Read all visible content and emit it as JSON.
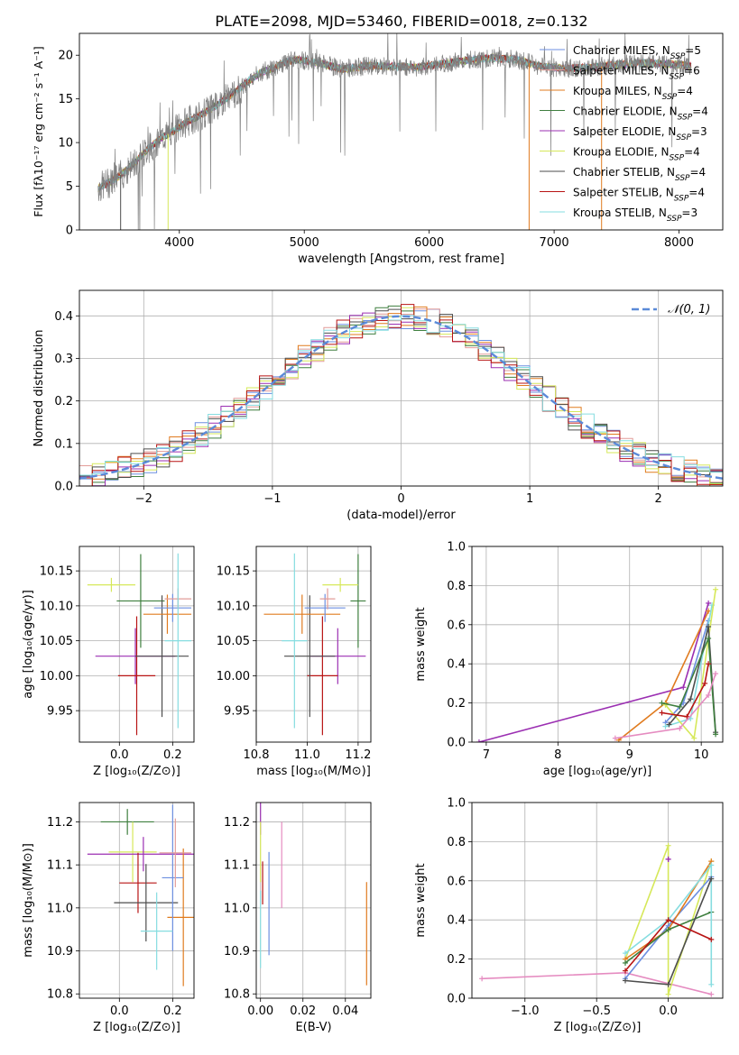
{
  "title": "PLATE=2098, MJD=53460, FIBERID=0018, z=0.132",
  "colors": {
    "chabrier_miles": "#6d8fe0",
    "salpeter_miles": "#e29c98",
    "kroupa_miles": "#e07b1f",
    "chabrier_elodie": "#3f7f3f",
    "salpeter_elodie": "#9b2fb2",
    "kroupa_elodie": "#d6e85a",
    "chabrier_stelib": "#4d4d4d",
    "salpeter_stelib": "#b81414",
    "kroupa_stelib": "#86dde0",
    "data": "#7f7f7f",
    "gauss": "#5b8ad8",
    "pink": "#e58bc0",
    "grid": "#b0b0b0"
  },
  "chart_data": [
    {
      "id": "spectrum",
      "type": "line",
      "xlabel": "wavelength [Angstrom, rest frame]",
      "ylabel": "Flux [fλ10⁻¹⁷ erg cm⁻² s⁻¹ A⁻¹]",
      "xlim": [
        3200,
        8350
      ],
      "ylim": [
        0,
        22.5
      ],
      "xticks": [
        "4000",
        "5000",
        "6000",
        "7000",
        "8000"
      ],
      "yticks": [
        "0",
        "5",
        "10",
        "15",
        "20"
      ],
      "grid": false,
      "legend_position": "right",
      "legend": [
        {
          "key": "chabrier_miles",
          "label": "Chabrier MILES, N",
          "sub": "SSP",
          "suffix": "=5"
        },
        {
          "key": "salpeter_miles",
          "label": "Salpeter MILES, N",
          "sub": "SSP",
          "suffix": "=6"
        },
        {
          "key": "kroupa_miles",
          "label": "Kroupa MILES, N",
          "sub": "SSP",
          "suffix": "=4"
        },
        {
          "key": "chabrier_elodie",
          "label": "Chabrier ELODIE, N",
          "sub": "SSP",
          "suffix": "=4"
        },
        {
          "key": "salpeter_elodie",
          "label": "Salpeter ELODIE, N",
          "sub": "SSP",
          "suffix": "=3"
        },
        {
          "key": "kroupa_elodie",
          "label": "Kroupa ELODIE, N",
          "sub": "SSP",
          "suffix": "=4"
        },
        {
          "key": "chabrier_stelib",
          "label": "Chabrier STELIB, N",
          "sub": "SSP",
          "suffix": "=4"
        },
        {
          "key": "salpeter_stelib",
          "label": "Salpeter STELIB, N",
          "sub": "SSP",
          "suffix": "=4"
        },
        {
          "key": "kroupa_stelib",
          "label": "Kroupa STELIB, N",
          "sub": "SSP",
          "suffix": "=3"
        }
      ],
      "continuum": [
        [
          3350,
          4.8
        ],
        [
          3450,
          5.5
        ],
        [
          3550,
          6.5
        ],
        [
          3650,
          7.8
        ],
        [
          3750,
          9.3
        ],
        [
          3850,
          10.5
        ],
        [
          3950,
          11.3
        ],
        [
          4050,
          12.3
        ],
        [
          4150,
          13.0
        ],
        [
          4250,
          13.8
        ],
        [
          4350,
          14.8
        ],
        [
          4450,
          15.8
        ],
        [
          4550,
          17.0
        ],
        [
          4650,
          18.0
        ],
        [
          4750,
          18.5
        ],
        [
          4850,
          19.2
        ],
        [
          4950,
          19.5
        ],
        [
          5050,
          19.3
        ],
        [
          5150,
          19.0
        ],
        [
          5300,
          18.4
        ],
        [
          5500,
          18.8
        ],
        [
          5700,
          18.7
        ],
        [
          5900,
          18.6
        ],
        [
          6100,
          19.0
        ],
        [
          6300,
          19.4
        ],
        [
          6500,
          19.7
        ],
        [
          6700,
          19.5
        ],
        [
          6900,
          18.7
        ],
        [
          7100,
          18.5
        ],
        [
          7300,
          18.6
        ],
        [
          7500,
          18.9
        ],
        [
          7700,
          19.1
        ],
        [
          7900,
          19.0
        ],
        [
          8100,
          18.8
        ]
      ]
    },
    {
      "id": "residuals",
      "type": "line",
      "xlabel": "(data-model)/error",
      "ylabel": "Normed distribution",
      "xlim": [
        -2.5,
        2.5
      ],
      "ylim": [
        0,
        0.46
      ],
      "xticks": [
        "−2",
        "−1",
        "0",
        "1",
        "2"
      ],
      "yticks": [
        "0.0",
        "0.1",
        "0.2",
        "0.3",
        "0.4"
      ],
      "grid": true,
      "legend_position": "top-right",
      "gauss_label": "𝒩(0, 1)"
    },
    {
      "id": "age_vs_Z",
      "type": "scatter",
      "xlabel": "Z [log₁₀(Z/Z⊙)]",
      "ylabel": "age  [log₁₀(age/yr)]",
      "xlim": [
        -0.15,
        0.28
      ],
      "ylim": [
        9.905,
        10.185
      ],
      "xticks": [
        "0.0",
        "0.2"
      ],
      "yticks": [
        "9.95",
        "10.00",
        "10.05",
        "10.10",
        "10.15"
      ],
      "grid": true,
      "points": [
        {
          "key": "chabrier_elodie",
          "x": 0.08,
          "y": 10.107,
          "xerr": 0.09,
          "yerr": 0.067
        },
        {
          "key": "kroupa_elodie",
          "x": -0.03,
          "y": 10.13,
          "xerr": 0.09,
          "yerr": 0.01
        },
        {
          "key": "salpeter_elodie",
          "x": 0.06,
          "y": 10.028,
          "xerr": 0.15,
          "yerr": 0.04
        },
        {
          "key": "salpeter_stelib",
          "x": 0.065,
          "y": 10.0,
          "xerr": 0.07,
          "yerr": 0.085
        },
        {
          "key": "chabrier_stelib",
          "x": 0.16,
          "y": 10.028,
          "xerr": 0.1,
          "yerr": 0.087
        },
        {
          "key": "kroupa_miles",
          "x": 0.18,
          "y": 10.088,
          "xerr": 0.09,
          "yerr": 0.028
        },
        {
          "key": "chabrier_miles",
          "x": 0.2,
          "y": 10.097,
          "xerr": 0.07,
          "yerr": 0.02
        },
        {
          "key": "salpeter_miles",
          "x": 0.22,
          "y": 10.11,
          "xerr": 0.05,
          "yerr": 0.015
        },
        {
          "key": "kroupa_stelib",
          "x": 0.22,
          "y": 10.05,
          "xerr": 0.05,
          "yerr": 0.125
        }
      ]
    },
    {
      "id": "age_vs_mass",
      "type": "scatter",
      "xlabel": "mass [log₁₀(M/M⊙)]",
      "ylabel": "",
      "xlim": [
        10.8,
        11.25
      ],
      "ylim": [
        9.905,
        10.185
      ],
      "xticks": [
        "10.8",
        "11.0",
        "11.2"
      ],
      "yticks": [
        "9.95",
        "10.00",
        "10.05",
        "10.10",
        "10.15"
      ],
      "grid": true,
      "points": [
        {
          "key": "chabrier_elodie",
          "x": 11.2,
          "y": 10.107,
          "xerr": 0.03,
          "yerr": 0.067
        },
        {
          "key": "kroupa_elodie",
          "x": 11.13,
          "y": 10.13,
          "xerr": 0.07,
          "yerr": 0.01
        },
        {
          "key": "salpeter_elodie",
          "x": 11.12,
          "y": 10.028,
          "xerr": 0.11,
          "yerr": 0.04
        },
        {
          "key": "salpeter_stelib",
          "x": 11.06,
          "y": 10.0,
          "xerr": 0.06,
          "yerr": 0.085
        },
        {
          "key": "chabrier_stelib",
          "x": 11.01,
          "y": 10.028,
          "xerr": 0.1,
          "yerr": 0.087
        },
        {
          "key": "kroupa_miles",
          "x": 10.98,
          "y": 10.088,
          "xerr": 0.15,
          "yerr": 0.028
        },
        {
          "key": "chabrier_miles",
          "x": 11.07,
          "y": 10.097,
          "xerr": 0.08,
          "yerr": 0.02
        },
        {
          "key": "salpeter_miles",
          "x": 11.08,
          "y": 10.11,
          "xerr": 0.03,
          "yerr": 0.015
        },
        {
          "key": "kroupa_stelib",
          "x": 10.95,
          "y": 10.05,
          "xerr": 0.05,
          "yerr": 0.125
        }
      ]
    },
    {
      "id": "weight_vs_age",
      "type": "line",
      "xlabel": "age  [log₁₀(age/yr)]",
      "ylabel": "mass weight",
      "xlim": [
        6.8,
        10.3
      ],
      "ylim": [
        0,
        1.0
      ],
      "xticks": [
        "7",
        "8",
        "9",
        "10"
      ],
      "yticks": [
        "0.0",
        "0.2",
        "0.4",
        "0.6",
        "0.8",
        "1.0"
      ],
      "grid": true,
      "series": [
        {
          "key": "salpeter_elodie",
          "x": [
            6.9,
            9.75,
            10.1
          ],
          "y": [
            0.0,
            0.28,
            0.71
          ]
        },
        {
          "key": "kroupa_miles",
          "x": [
            8.85,
            9.5,
            10.1
          ],
          "y": [
            0.01,
            0.2,
            0.67
          ]
        },
        {
          "key": "chabrier_miles",
          "x": [
            9.5,
            9.75,
            10.1
          ],
          "y": [
            0.1,
            0.2,
            0.62
          ]
        },
        {
          "key": "kroupa_stelib",
          "x": [
            9.5,
            9.85,
            10.15
          ],
          "y": [
            0.08,
            0.12,
            0.7
          ]
        },
        {
          "key": "kroupa_elodie",
          "x": [
            9.5,
            9.9,
            10.2
          ],
          "y": [
            0.19,
            0.02,
            0.78
          ]
        },
        {
          "key": "chabrier_stelib",
          "x": [
            9.55,
            9.85,
            10.1,
            10.2
          ],
          "y": [
            0.09,
            0.22,
            0.59,
            0.05
          ]
        },
        {
          "key": "chabrier_elodie",
          "x": [
            9.45,
            9.7,
            10.1,
            10.2
          ],
          "y": [
            0.2,
            0.18,
            0.53,
            0.04
          ]
        },
        {
          "key": "salpeter_stelib",
          "x": [
            9.45,
            9.8,
            10.05,
            10.1
          ],
          "y": [
            0.15,
            0.13,
            0.3,
            0.4
          ]
        },
        {
          "key": "pink",
          "x": [
            8.8,
            9.7,
            10.1,
            10.2
          ],
          "y": [
            0.02,
            0.07,
            0.24,
            0.35
          ]
        }
      ]
    },
    {
      "id": "mass_vs_Z",
      "type": "scatter",
      "xlabel": "Z [log₁₀(Z/Z⊙)]",
      "ylabel": "mass [log₁₀(M/M⊙)]",
      "xlim": [
        -0.15,
        0.28
      ],
      "ylim": [
        10.79,
        11.245
      ],
      "xticks": [
        "0.0",
        "0.2"
      ],
      "yticks": [
        "10.8",
        "10.9",
        "11.0",
        "11.1",
        "11.2"
      ],
      "grid": true,
      "points": [
        {
          "key": "chabrier_elodie",
          "x": 0.03,
          "y": 11.2,
          "xerr": 0.1,
          "yerr": 0.03
        },
        {
          "key": "kroupa_elodie",
          "x": 0.05,
          "y": 11.13,
          "xerr": 0.09,
          "yerr": 0.07
        },
        {
          "key": "salpeter_elodie",
          "x": 0.09,
          "y": 11.125,
          "xerr": 0.21,
          "yerr": 0.04
        },
        {
          "key": "salpeter_stelib",
          "x": 0.07,
          "y": 11.058,
          "xerr": 0.07,
          "yerr": 0.07
        },
        {
          "key": "chabrier_stelib",
          "x": 0.1,
          "y": 11.012,
          "xerr": 0.12,
          "yerr": 0.09
        },
        {
          "key": "kroupa_miles",
          "x": 0.24,
          "y": 10.978,
          "xerr": 0.06,
          "yerr": 0.16
        },
        {
          "key": "chabrier_miles",
          "x": 0.2,
          "y": 11.07,
          "xerr": 0.04,
          "yerr": 0.17
        },
        {
          "key": "salpeter_miles",
          "x": 0.21,
          "y": 11.128,
          "xerr": 0.06,
          "yerr": 0.08
        },
        {
          "key": "kroupa_stelib",
          "x": 0.14,
          "y": 10.946,
          "xerr": 0.06,
          "yerr": 0.09
        }
      ]
    },
    {
      "id": "mass_vs_ebv",
      "type": "scatter",
      "xlabel": "E(B-V)",
      "ylabel": "",
      "xlim": [
        -0.002,
        0.052
      ],
      "ylim": [
        10.79,
        11.245
      ],
      "xticks": [
        "0.00",
        "0.02",
        "0.04"
      ],
      "yticks": [
        "10.8",
        "10.9",
        "11.0",
        "11.1",
        "11.2"
      ],
      "grid": true,
      "points": [
        {
          "key": "salpeter_elodie",
          "x": 0.0,
          "y": 11.21,
          "xerr": 0.0,
          "yerr": 0.04
        },
        {
          "key": "kroupa_elodie",
          "x": 0.0,
          "y": 11.13,
          "xerr": 0.0,
          "yerr": 0.07
        },
        {
          "key": "salpeter_stelib",
          "x": 0.001,
          "y": 11.058,
          "xerr": 0.0,
          "yerr": 0.05
        },
        {
          "key": "kroupa_stelib",
          "x": 0.0,
          "y": 10.95,
          "xerr": 0.0,
          "yerr": 0.09
        },
        {
          "key": "chabrier_miles",
          "x": 0.004,
          "y": 11.01,
          "xerr": 0.0,
          "yerr": 0.12
        },
        {
          "key": "pink",
          "x": 0.01,
          "y": 11.1,
          "xerr": 0.0,
          "yerr": 0.1
        },
        {
          "key": "kroupa_miles",
          "x": 0.05,
          "y": 10.94,
          "xerr": 0.0,
          "yerr": 0.12
        }
      ]
    },
    {
      "id": "weight_vs_Z",
      "type": "line",
      "xlabel": "Z [log₁₀(Z/Z⊙)]",
      "ylabel": "mass weight",
      "xlim": [
        -1.37,
        0.38
      ],
      "ylim": [
        0,
        1.0
      ],
      "xticks": [
        "−1.0",
        "−0.5",
        "0.0"
      ],
      "yticks": [
        "0.0",
        "0.2",
        "0.4",
        "0.6",
        "0.8",
        "1.0"
      ],
      "grid": true,
      "series": [
        {
          "key": "pink",
          "x": [
            -1.3,
            -0.3,
            0.3
          ],
          "y": [
            0.1,
            0.13,
            0.02
          ]
        },
        {
          "key": "kroupa_elodie",
          "x": [
            -0.3,
            0.0,
            0.0,
            0.3
          ],
          "y": [
            0.2,
            0.78,
            0.02,
            0.7
          ]
        },
        {
          "key": "salpeter_elodie",
          "x": [
            0.0,
            0.0
          ],
          "y": [
            0.71,
            0.71
          ]
        },
        {
          "key": "chabrier_miles",
          "x": [
            -0.3,
            0.0,
            0.3
          ],
          "y": [
            0.1,
            0.37,
            0.62
          ]
        },
        {
          "key": "kroupa_miles",
          "x": [
            -0.3,
            0.0,
            0.3
          ],
          "y": [
            0.2,
            0.35,
            0.7
          ]
        },
        {
          "key": "chabrier_elodie",
          "x": [
            -0.3,
            0.0,
            0.3
          ],
          "y": [
            0.18,
            0.35,
            0.44
          ]
        },
        {
          "key": "kroupa_stelib",
          "x": [
            -0.3,
            0.0,
            0.3,
            0.3
          ],
          "y": [
            0.23,
            0.4,
            0.68,
            0.07
          ]
        },
        {
          "key": "chabrier_stelib",
          "x": [
            -0.3,
            0.0,
            0.3
          ],
          "y": [
            0.09,
            0.07,
            0.61
          ]
        },
        {
          "key": "salpeter_stelib",
          "x": [
            -0.3,
            0.0,
            0.3
          ],
          "y": [
            0.14,
            0.4,
            0.3
          ]
        }
      ]
    }
  ]
}
